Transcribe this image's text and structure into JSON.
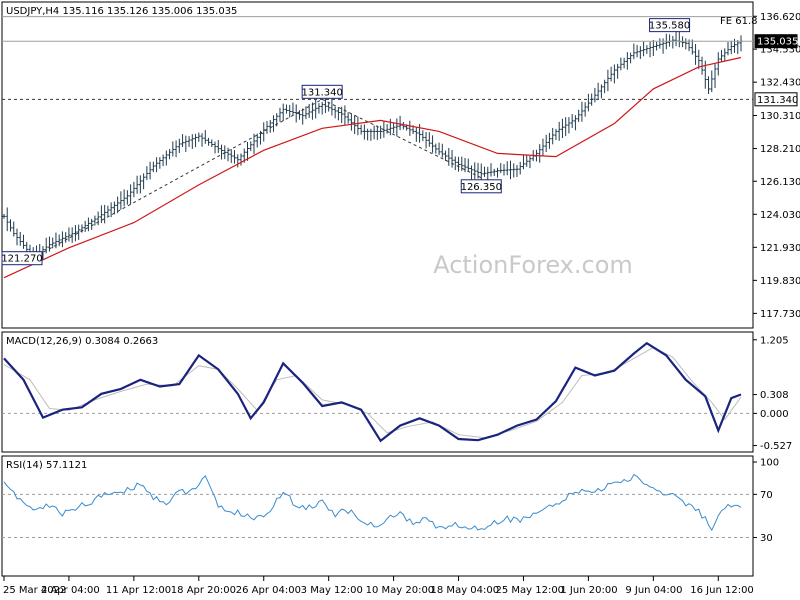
{
  "watermark": "ActionForex.com",
  "colors": {
    "background": "#ffffff",
    "price_bars": "#1f3a4d",
    "moving_average": "#d01818",
    "trendline": "#333333",
    "macd_line": "#1a237e",
    "macd_signal": "#bdbdbd",
    "rsi_line": "#3a8ccf",
    "watermark": "#c9c9c9"
  },
  "chart_data": [
    {
      "type": "ohlc",
      "title": "USDJPY,H4  135.116 135.126 135.006 135.035",
      "fib_label": "FE 61.8",
      "ylim": [
        116.8,
        137.4
      ],
      "yticks": [
        "136.620",
        "134.530",
        "132.430",
        "130.310",
        "128.210",
        "126.130",
        "124.030",
        "121.930",
        "119.830",
        "117.730"
      ],
      "ytick_values": [
        136.62,
        134.53,
        132.43,
        130.31,
        128.21,
        126.13,
        124.03,
        121.93,
        119.83,
        117.73
      ],
      "price_levels": [
        {
          "label": "135.035",
          "value": 135.035,
          "style": "solid"
        },
        {
          "label": "131.340",
          "value": 131.34,
          "style": "dashed"
        },
        {
          "label": "",
          "value": 136.6,
          "style": "solid"
        }
      ],
      "annotations": [
        {
          "label": "121.270",
          "t": 9,
          "value": 121.27
        },
        {
          "label": "131.340",
          "t": 98,
          "value": 131.34
        },
        {
          "label": "126.350",
          "t": 147,
          "value": 126.35
        },
        {
          "label": "135.580",
          "t": 205,
          "value": 135.58
        }
      ],
      "trendlines": [
        {
          "from": [
            9,
            121.27
          ],
          "to": [
            98,
            131.34
          ]
        },
        {
          "from": [
            98,
            131.34
          ],
          "to": [
            147,
            126.35
          ]
        }
      ],
      "close_points": [
        [
          0,
          123.9
        ],
        [
          3,
          122.8
        ],
        [
          9,
          121.3
        ],
        [
          14,
          122.1
        ],
        [
          22,
          122.9
        ],
        [
          30,
          124.0
        ],
        [
          38,
          125.2
        ],
        [
          46,
          127.1
        ],
        [
          54,
          128.5
        ],
        [
          60,
          129.0
        ],
        [
          66,
          128.2
        ],
        [
          72,
          127.5
        ],
        [
          80,
          129.4
        ],
        [
          86,
          130.7
        ],
        [
          92,
          130.3
        ],
        [
          98,
          131.0
        ],
        [
          104,
          130.4
        ],
        [
          110,
          129.3
        ],
        [
          116,
          129.3
        ],
        [
          122,
          129.7
        ],
        [
          128,
          129.1
        ],
        [
          134,
          128.0
        ],
        [
          140,
          127.2
        ],
        [
          147,
          126.6
        ],
        [
          152,
          126.8
        ],
        [
          158,
          126.9
        ],
        [
          164,
          127.9
        ],
        [
          170,
          129.3
        ],
        [
          176,
          130.1
        ],
        [
          182,
          131.6
        ],
        [
          188,
          133.2
        ],
        [
          194,
          134.3
        ],
        [
          200,
          134.7
        ],
        [
          206,
          135.1
        ],
        [
          210,
          134.9
        ],
        [
          214,
          133.8
        ],
        [
          217,
          132.0
        ],
        [
          220,
          133.9
        ],
        [
          224,
          134.7
        ],
        [
          227,
          135.035
        ]
      ],
      "ma_points": [
        [
          0,
          120.0
        ],
        [
          20,
          121.9
        ],
        [
          40,
          123.5
        ],
        [
          60,
          125.9
        ],
        [
          80,
          128.1
        ],
        [
          98,
          129.5
        ],
        [
          116,
          130.0
        ],
        [
          134,
          129.3
        ],
        [
          152,
          127.9
        ],
        [
          170,
          127.7
        ],
        [
          188,
          129.8
        ],
        [
          200,
          132.0
        ],
        [
          214,
          133.4
        ],
        [
          227,
          134.0
        ]
      ],
      "xticks": [
        "25 Mar 2022",
        "4 Apr 04:00",
        "11 Apr 12:00",
        "18 Apr 20:00",
        "26 Apr 04:00",
        "3 May 12:00",
        "10 May 20:00",
        "18 May 04:00",
        "25 May 12:00",
        "1 Jun 20:00",
        "9 Jun 04:00",
        "16 Jun 12:00"
      ],
      "xtick_positions": [
        0,
        20,
        40,
        60,
        80,
        100,
        120,
        140,
        160,
        180,
        200,
        220
      ],
      "t_max": 227
    },
    {
      "type": "line",
      "title": "MACD(12,26,9) 0.3084 0.2663",
      "ylim": [
        -0.6,
        1.3
      ],
      "yticks": [
        "1.205",
        "0.308",
        "0.000",
        "-0.527"
      ],
      "ytick_values": [
        1.205,
        0.308,
        0.0,
        -0.527
      ],
      "zero_line": 0.0,
      "macd_points": [
        [
          0,
          0.9
        ],
        [
          6,
          0.55
        ],
        [
          12,
          -0.07
        ],
        [
          18,
          0.06
        ],
        [
          24,
          0.1
        ],
        [
          30,
          0.32
        ],
        [
          36,
          0.4
        ],
        [
          42,
          0.55
        ],
        [
          48,
          0.44
        ],
        [
          54,
          0.48
        ],
        [
          60,
          0.95
        ],
        [
          66,
          0.72
        ],
        [
          72,
          0.32
        ],
        [
          76,
          -0.08
        ],
        [
          80,
          0.18
        ],
        [
          86,
          0.82
        ],
        [
          92,
          0.5
        ],
        [
          98,
          0.12
        ],
        [
          104,
          0.18
        ],
        [
          110,
          0.06
        ],
        [
          116,
          -0.45
        ],
        [
          122,
          -0.2
        ],
        [
          128,
          -0.08
        ],
        [
          134,
          -0.2
        ],
        [
          140,
          -0.42
        ],
        [
          146,
          -0.44
        ],
        [
          152,
          -0.35
        ],
        [
          158,
          -0.2
        ],
        [
          164,
          -0.1
        ],
        [
          170,
          0.2
        ],
        [
          176,
          0.75
        ],
        [
          182,
          0.62
        ],
        [
          188,
          0.7
        ],
        [
          194,
          0.98
        ],
        [
          198,
          1.15
        ],
        [
          204,
          0.95
        ],
        [
          210,
          0.55
        ],
        [
          216,
          0.28
        ],
        [
          220,
          -0.28
        ],
        [
          224,
          0.25
        ],
        [
          227,
          0.3084
        ]
      ],
      "signal_points": [
        [
          0,
          0.8
        ],
        [
          8,
          0.55
        ],
        [
          14,
          0.08
        ],
        [
          20,
          0.05
        ],
        [
          28,
          0.22
        ],
        [
          36,
          0.36
        ],
        [
          44,
          0.48
        ],
        [
          52,
          0.45
        ],
        [
          60,
          0.78
        ],
        [
          66,
          0.72
        ],
        [
          72,
          0.4
        ],
        [
          78,
          0.05
        ],
        [
          84,
          0.55
        ],
        [
          90,
          0.62
        ],
        [
          98,
          0.22
        ],
        [
          106,
          0.14
        ],
        [
          112,
          0.0
        ],
        [
          118,
          -0.32
        ],
        [
          124,
          -0.22
        ],
        [
          132,
          -0.14
        ],
        [
          140,
          -0.35
        ],
        [
          148,
          -0.4
        ],
        [
          156,
          -0.28
        ],
        [
          164,
          -0.13
        ],
        [
          172,
          0.18
        ],
        [
          178,
          0.62
        ],
        [
          186,
          0.66
        ],
        [
          194,
          0.9
        ],
        [
          200,
          1.08
        ],
        [
          206,
          0.92
        ],
        [
          212,
          0.52
        ],
        [
          218,
          0.18
        ],
        [
          222,
          -0.1
        ],
        [
          227,
          0.2663
        ]
      ]
    },
    {
      "type": "line",
      "title": "RSI(14) 57.1121",
      "ylim": [
        0,
        100
      ],
      "yticks": [
        "100",
        "70",
        "30"
      ],
      "ytick_values": [
        100,
        70,
        30
      ],
      "levels": [
        70,
        30
      ],
      "rsi_points": [
        [
          0,
          84
        ],
        [
          3,
          70
        ],
        [
          6,
          62
        ],
        [
          10,
          55
        ],
        [
          14,
          60
        ],
        [
          18,
          52
        ],
        [
          22,
          58
        ],
        [
          26,
          62
        ],
        [
          30,
          68
        ],
        [
          34,
          72
        ],
        [
          38,
          74
        ],
        [
          42,
          80
        ],
        [
          46,
          68
        ],
        [
          50,
          62
        ],
        [
          54,
          72
        ],
        [
          58,
          74
        ],
        [
          62,
          85
        ],
        [
          66,
          58
        ],
        [
          70,
          55
        ],
        [
          74,
          50
        ],
        [
          78,
          48
        ],
        [
          82,
          55
        ],
        [
          86,
          72
        ],
        [
          90,
          60
        ],
        [
          94,
          58
        ],
        [
          98,
          62
        ],
        [
          102,
          52
        ],
        [
          106,
          55
        ],
        [
          110,
          45
        ],
        [
          114,
          40
        ],
        [
          118,
          48
        ],
        [
          122,
          52
        ],
        [
          126,
          42
        ],
        [
          130,
          48
        ],
        [
          134,
          38
        ],
        [
          138,
          42
        ],
        [
          142,
          40
        ],
        [
          146,
          38
        ],
        [
          150,
          42
        ],
        [
          154,
          48
        ],
        [
          158,
          46
        ],
        [
          162,
          50
        ],
        [
          166,
          55
        ],
        [
          170,
          60
        ],
        [
          174,
          68
        ],
        [
          178,
          75
        ],
        [
          182,
          72
        ],
        [
          186,
          78
        ],
        [
          190,
          82
        ],
        [
          194,
          86
        ],
        [
          198,
          80
        ],
        [
          202,
          72
        ],
        [
          206,
          70
        ],
        [
          210,
          62
        ],
        [
          214,
          55
        ],
        [
          218,
          38
        ],
        [
          222,
          58
        ],
        [
          227,
          57.1121
        ]
      ]
    }
  ]
}
